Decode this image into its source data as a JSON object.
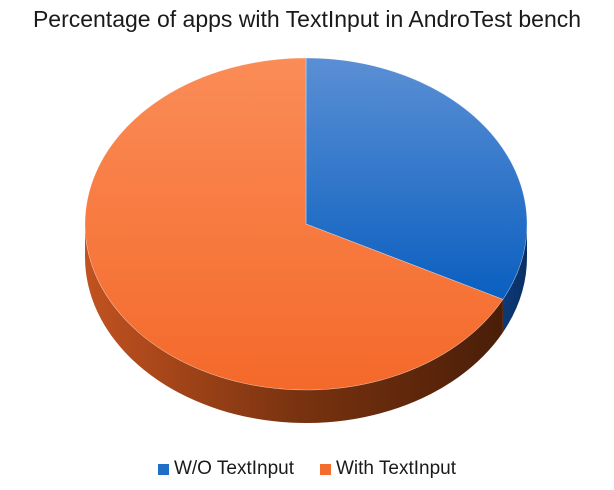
{
  "chart_data": {
    "type": "pie",
    "title": "Percentage of apps with TextInput in AndroTest bench",
    "categories": [
      "W/O TextInput",
      "With TextInput"
    ],
    "values": [
      32.5,
      67.5
    ],
    "colors": [
      "#1f6fc6",
      "#f46d2e"
    ],
    "legend": "bottom",
    "style": "3d"
  }
}
